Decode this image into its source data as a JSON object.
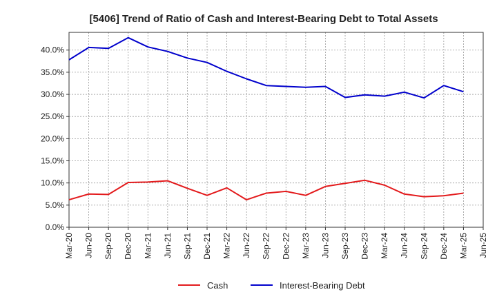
{
  "chart_data": {
    "type": "line",
    "title": "[5406]  Trend of Ratio of Cash and Interest-Bearing Debt to Total Assets",
    "xlabel": "",
    "ylabel": "",
    "categories": [
      "Mar-20",
      "Jun-20",
      "Sep-20",
      "Dec-20",
      "Mar-21",
      "Jun-21",
      "Sep-21",
      "Dec-21",
      "Mar-22",
      "Jun-22",
      "Sep-22",
      "Dec-22",
      "Mar-23",
      "Jun-23",
      "Sep-23",
      "Dec-23",
      "Mar-24",
      "Jun-24",
      "Sep-24",
      "Dec-24",
      "Mar-25",
      "Jun-25"
    ],
    "y_ticks": [
      "0.0%",
      "5.0%",
      "10.0%",
      "15.0%",
      "20.0%",
      "25.0%",
      "30.0%",
      "35.0%",
      "40.0%"
    ],
    "ylim": [
      0,
      44
    ],
    "grid": true,
    "legend_position": "bottom",
    "series": [
      {
        "name": "Cash",
        "color": "#e31a1c",
        "values": [
          6.2,
          7.5,
          7.4,
          10.1,
          10.2,
          10.5,
          8.8,
          7.2,
          8.9,
          6.2,
          7.7,
          8.1,
          7.2,
          9.2,
          9.9,
          10.6,
          9.5,
          7.5,
          6.9,
          7.1,
          7.7,
          null
        ]
      },
      {
        "name": "Interest-Bearing Debt",
        "color": "#0000cc",
        "values": [
          37.8,
          40.6,
          40.4,
          42.8,
          40.7,
          39.7,
          38.2,
          37.2,
          35.2,
          33.5,
          32.0,
          31.8,
          31.6,
          31.8,
          29.3,
          29.9,
          29.6,
          30.5,
          29.2,
          32.0,
          30.6,
          null
        ]
      }
    ]
  }
}
